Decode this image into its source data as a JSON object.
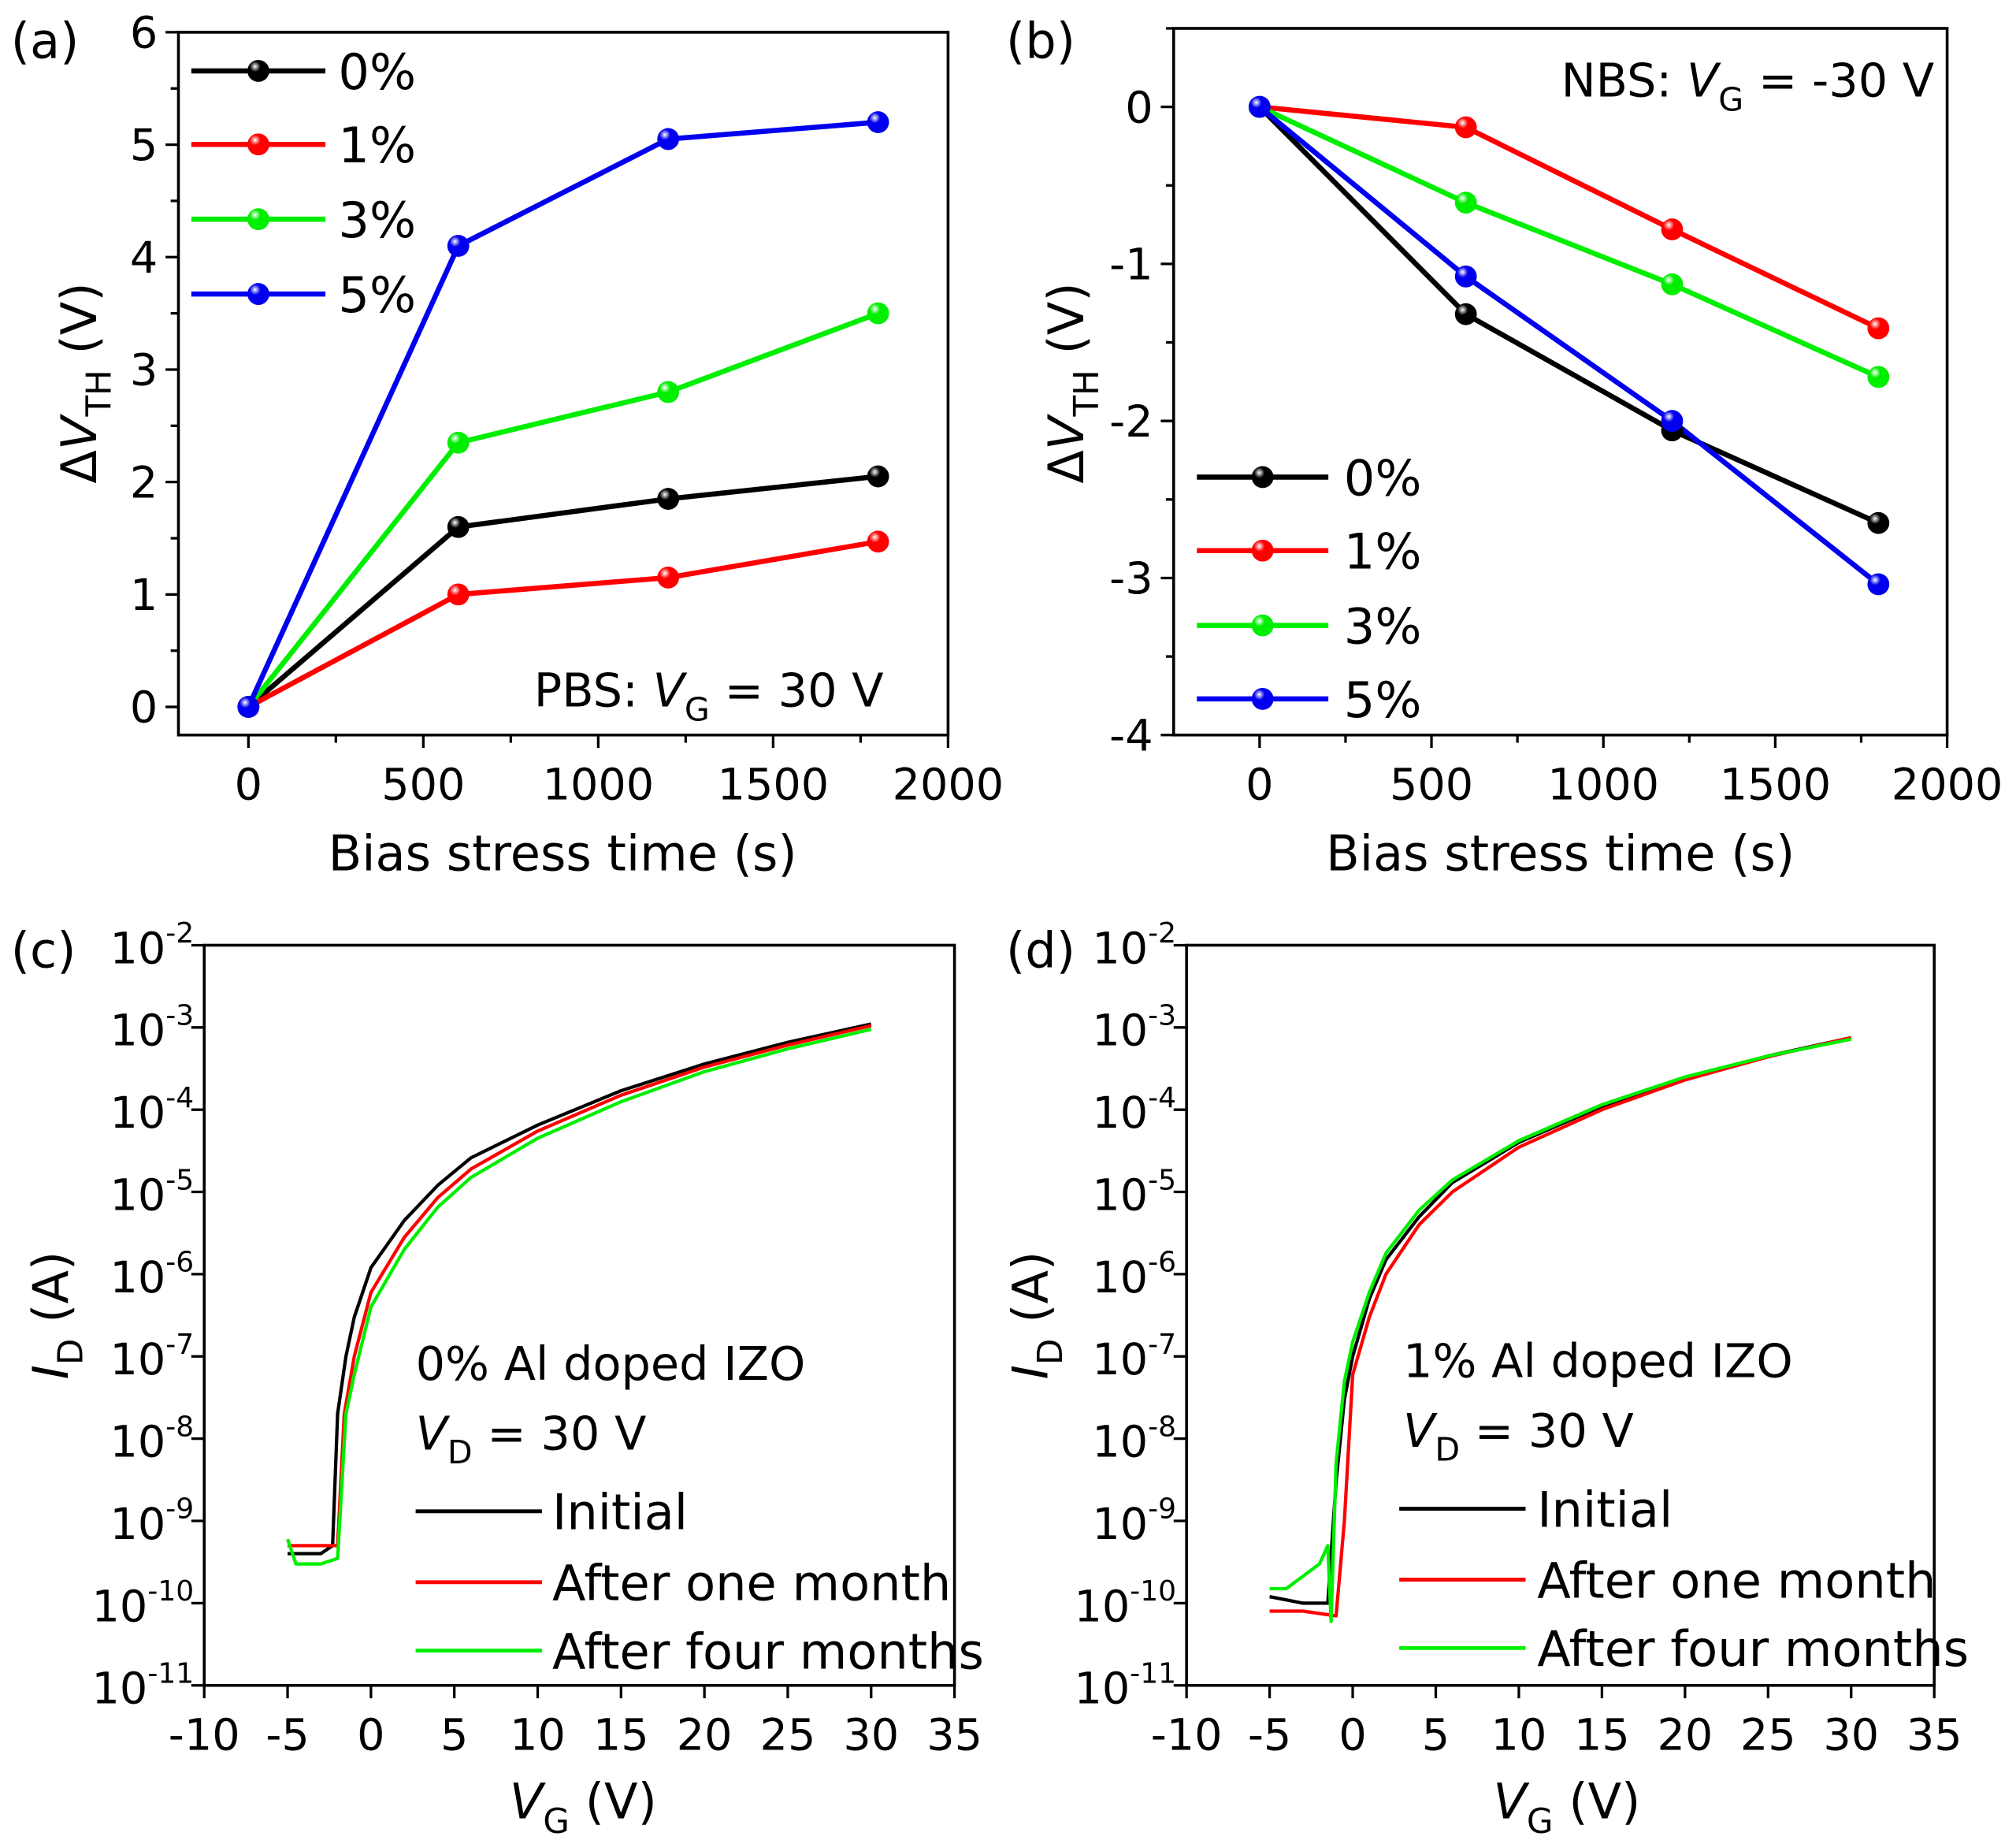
{
  "chart_data": [
    {
      "panel_label": "(a)",
      "type": "line",
      "xlabel": "Bias stress time (s)",
      "ylabel": "ΔV_TH (V)",
      "xlim": [
        -200,
        2000
      ],
      "ylim": [
        -0.25,
        6
      ],
      "x_ticks": [
        0,
        500,
        1000,
        1500,
        2000
      ],
      "y_ticks": [
        0,
        1,
        2,
        3,
        4,
        5,
        6
      ],
      "y_scale": "linear",
      "legend_placement": "top-left",
      "annotation": "PBS: V_G = 30 V",
      "x": [
        0,
        600,
        1200,
        1800
      ],
      "series": [
        {
          "name": "0%",
          "color": "#000000",
          "values": [
            0,
            1.6,
            1.85,
            2.05
          ]
        },
        {
          "name": "1%",
          "color": "#ff0000",
          "values": [
            0,
            1.0,
            1.15,
            1.47
          ]
        },
        {
          "name": "3%",
          "color": "#00ee00",
          "values": [
            0,
            2.35,
            2.8,
            3.5
          ]
        },
        {
          "name": "5%",
          "color": "#0000ee",
          "values": [
            0,
            4.1,
            5.05,
            5.2
          ]
        }
      ]
    },
    {
      "panel_label": "(b)",
      "type": "line",
      "xlabel": "Bias stress time (s)",
      "ylabel": "ΔV_TH (V)",
      "xlim": [
        -250,
        2000
      ],
      "ylim": [
        -4,
        0.5
      ],
      "x_ticks": [
        0,
        500,
        1000,
        1500,
        2000
      ],
      "y_ticks": [
        0,
        -1,
        -2,
        -3,
        -4
      ],
      "y_scale": "linear",
      "legend_placement": "bottom-left",
      "annotation": "NBS: V_G = -30 V",
      "x": [
        0,
        600,
        1200,
        1800
      ],
      "series": [
        {
          "name": "0%",
          "color": "#000000",
          "values": [
            0,
            -1.32,
            -2.06,
            -2.65
          ]
        },
        {
          "name": "1%",
          "color": "#ff0000",
          "values": [
            0,
            -0.13,
            -0.78,
            -1.41
          ]
        },
        {
          "name": "3%",
          "color": "#00ee00",
          "values": [
            0,
            -0.61,
            -1.13,
            -1.72
          ]
        },
        {
          "name": "5%",
          "color": "#0000ee",
          "values": [
            0,
            -1.08,
            -2.0,
            -3.04
          ]
        }
      ]
    },
    {
      "panel_label": "(c)",
      "type": "line",
      "xlabel": "V_G (V)",
      "ylabel": "I_D (A)",
      "xlim": [
        -10,
        35
      ],
      "ylim": [
        1e-11,
        0.01
      ],
      "x_ticks": [
        -10,
        -5,
        0,
        5,
        10,
        15,
        20,
        25,
        30,
        35
      ],
      "y_tick_exponents": [
        -2,
        -3,
        -4,
        -5,
        -6,
        -7,
        -8,
        -9,
        -10,
        -11
      ],
      "y_tick_base": "10",
      "y_scale": "log",
      "legend_placement": "bottom-right",
      "annotation": "0% Al doped IZO",
      "annotation2": "V_D = 30 V",
      "series": [
        {
          "name": "Initial",
          "color": "#000000",
          "points": [
            [
              -5,
              4e-10
            ],
            [
              -3,
              4e-10
            ],
            [
              -2.3,
              5e-10
            ],
            [
              -2,
              2e-08
            ],
            [
              -1.5,
              1e-07
            ],
            [
              -1,
              3e-07
            ],
            [
              0,
              1.2e-06
            ],
            [
              2,
              4.5e-06
            ],
            [
              4,
              1.2e-05
            ],
            [
              6,
              2.6e-05
            ],
            [
              10,
              6.5e-05
            ],
            [
              15,
              0.00017
            ],
            [
              20,
              0.00036
            ],
            [
              25,
              0.00066
            ],
            [
              30,
              0.0011
            ]
          ]
        },
        {
          "name": "After one month",
          "color": "#ff0000",
          "points": [
            [
              -5,
              5e-10
            ],
            [
              -3,
              5e-10
            ],
            [
              -2,
              5e-10
            ],
            [
              -1.6,
              2e-08
            ],
            [
              -1,
              1e-07
            ],
            [
              0,
              6e-07
            ],
            [
              2,
              2.8e-06
            ],
            [
              4,
              8.5e-06
            ],
            [
              6,
              1.9e-05
            ],
            [
              10,
              5.5e-05
            ],
            [
              15,
              0.00015
            ],
            [
              20,
              0.00033
            ],
            [
              25,
              0.00061
            ],
            [
              30,
              0.00105
            ]
          ]
        },
        {
          "name": "After four months",
          "color": "#00ee00",
          "points": [
            [
              -5,
              6e-10
            ],
            [
              -4.5,
              3e-10
            ],
            [
              -3,
              3e-10
            ],
            [
              -2,
              3.5e-10
            ],
            [
              -1.5,
              2e-08
            ],
            [
              -1,
              6e-08
            ],
            [
              0,
              4e-07
            ],
            [
              2,
              2e-06
            ],
            [
              4,
              6.5e-06
            ],
            [
              6,
              1.5e-05
            ],
            [
              10,
              4.5e-05
            ],
            [
              15,
              0.000125
            ],
            [
              20,
              0.00029
            ],
            [
              25,
              0.00055
            ],
            [
              30,
              0.00095
            ]
          ]
        }
      ]
    },
    {
      "panel_label": "(d)",
      "type": "line",
      "xlabel": "V_G (V)",
      "ylabel": "I_D (A)",
      "xlim": [
        -10,
        35
      ],
      "ylim": [
        1e-11,
        0.01
      ],
      "x_ticks": [
        -10,
        -5,
        0,
        5,
        10,
        15,
        20,
        25,
        30,
        35
      ],
      "y_tick_exponents": [
        -2,
        -3,
        -4,
        -5,
        -6,
        -7,
        -8,
        -9,
        -10,
        -11
      ],
      "y_tick_base": "10",
      "y_scale": "log",
      "legend_placement": "bottom-right",
      "annotation": "1% Al doped IZO",
      "annotation2": "V_D = 30 V",
      "series": [
        {
          "name": "Initial",
          "color": "#000000",
          "points": [
            [
              -5,
              1.2e-10
            ],
            [
              -3,
              1e-10
            ],
            [
              -1.5,
              1e-10
            ],
            [
              -1,
              3e-09
            ],
            [
              -0.5,
              3e-08
            ],
            [
              0,
              1e-07
            ],
            [
              1,
              5e-07
            ],
            [
              2,
              1.5e-06
            ],
            [
              4,
              5e-06
            ],
            [
              6,
              1.3e-05
            ],
            [
              10,
              4e-05
            ],
            [
              15,
              0.00011
            ],
            [
              20,
              0.00024
            ],
            [
              25,
              0.00045
            ],
            [
              30,
              0.00075
            ]
          ]
        },
        {
          "name": "After one month",
          "color": "#ff0000",
          "points": [
            [
              -5,
              8e-11
            ],
            [
              -3,
              8e-11
            ],
            [
              -1,
              7e-11
            ],
            [
              -0.5,
              1e-09
            ],
            [
              0,
              6e-08
            ],
            [
              1,
              3e-07
            ],
            [
              2,
              1e-06
            ],
            [
              4,
              4e-06
            ],
            [
              6,
              1e-05
            ],
            [
              10,
              3.5e-05
            ],
            [
              15,
              0.0001
            ],
            [
              20,
              0.00023
            ],
            [
              25,
              0.00044
            ],
            [
              30,
              0.00075
            ]
          ]
        },
        {
          "name": "After four months",
          "color": "#00ee00",
          "points": [
            [
              -5,
              1.5e-10
            ],
            [
              -4,
              1.5e-10
            ],
            [
              -2,
              3e-10
            ],
            [
              -1.5,
              5e-10
            ],
            [
              -1.3,
              6e-11
            ],
            [
              -1,
              5e-09
            ],
            [
              -0.5,
              5e-08
            ],
            [
              0,
              1.5e-07
            ],
            [
              1,
              6e-07
            ],
            [
              2,
              1.8e-06
            ],
            [
              4,
              6e-06
            ],
            [
              6,
              1.4e-05
            ],
            [
              10,
              4.2e-05
            ],
            [
              15,
              0.000115
            ],
            [
              20,
              0.00025
            ],
            [
              25,
              0.00045
            ],
            [
              30,
              0.00072
            ]
          ]
        }
      ]
    }
  ]
}
